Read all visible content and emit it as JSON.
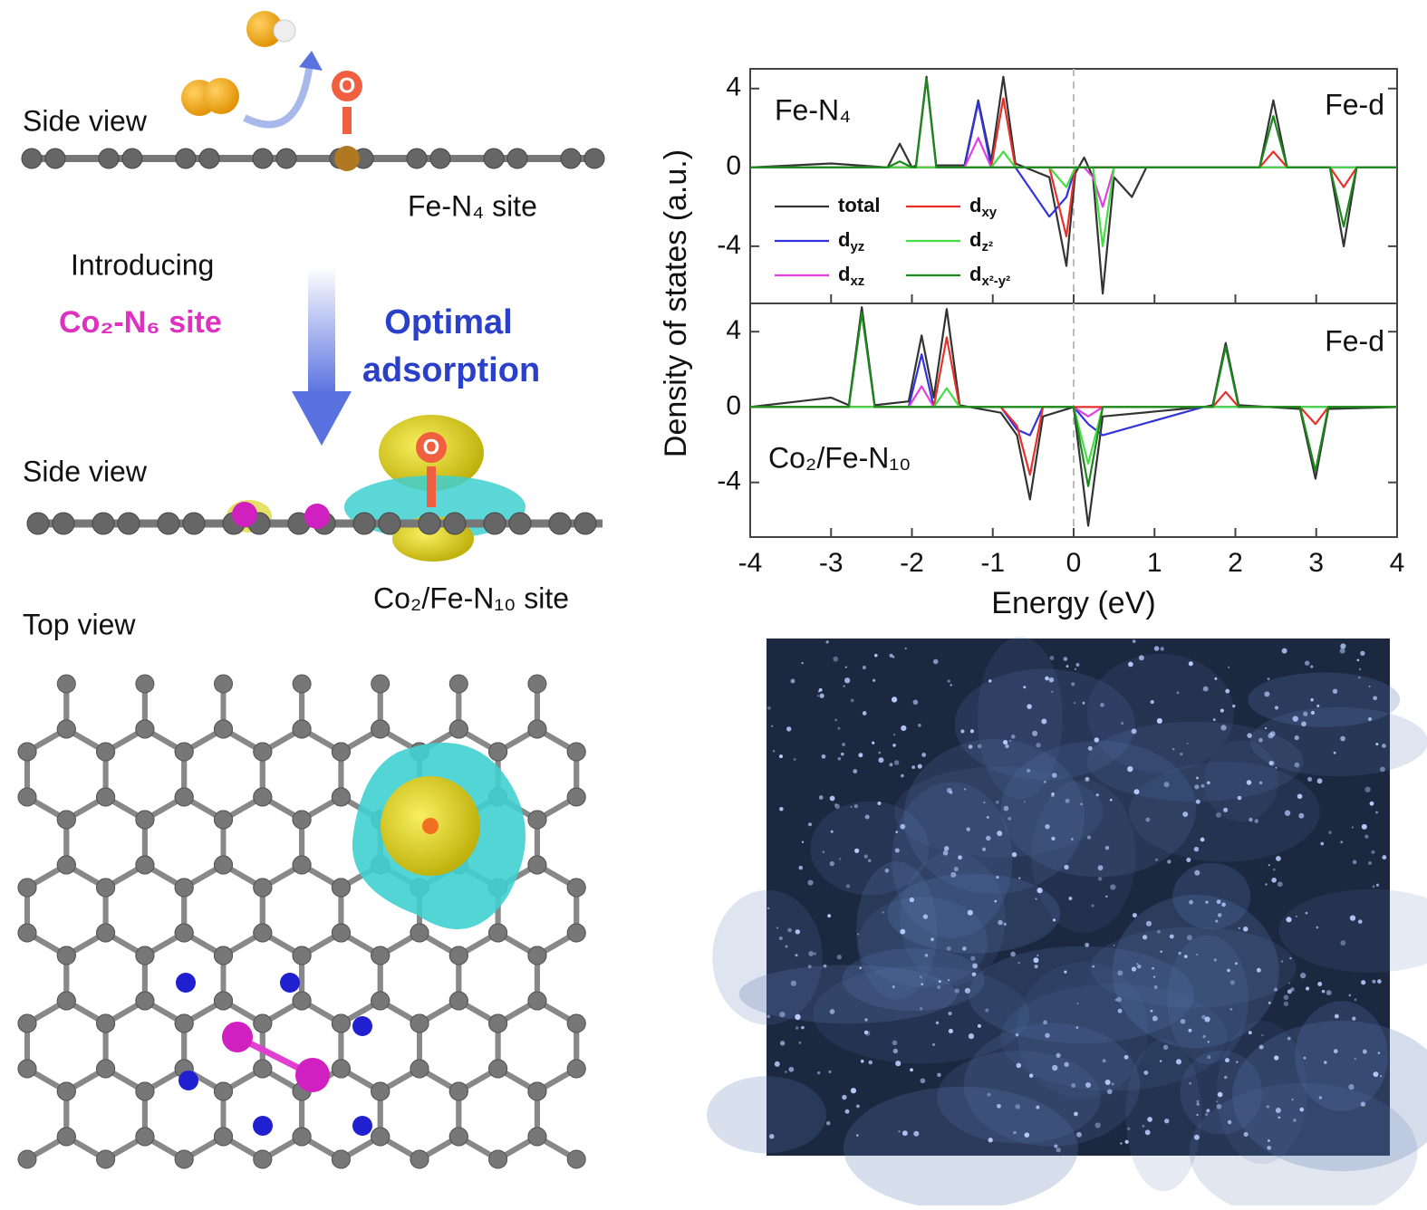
{
  "figure": {
    "side_view_top": "Side view",
    "fe_site": "Fe-N₄ site",
    "introducing": "Introducing",
    "co_site": "Co₂-N₆ site",
    "optimal_1": "Optimal",
    "optimal_2": "adsorption",
    "side_view_bottom": "Side view",
    "co_fe_site": "Co₂/Fe-N₁₀ site",
    "top_view": "Top view",
    "oxygen_top": "O",
    "oxygen_bottom": "O"
  },
  "chart_data": [
    {
      "type": "line",
      "ylabel": "Density of states (a.u.)",
      "annotations": [
        "Fe-N₄",
        "Fe-d"
      ],
      "xlim": [
        -4,
        4
      ],
      "xticks": [
        -4,
        -3,
        -2,
        -1,
        0,
        1,
        2,
        3,
        4
      ],
      "ylim": [
        -6.9,
        5.0
      ],
      "yticks": [
        -4,
        0,
        4
      ],
      "x": [
        -4,
        -3.0,
        -2.3,
        -2.15,
        -2.0,
        -1.95,
        -1.82,
        -1.7,
        -1.35,
        -1.18,
        -1.02,
        -0.87,
        -0.72,
        -0.3,
        -0.09,
        0.02,
        0.13,
        0.24,
        0.36,
        0.5,
        0.72,
        0.9,
        2.3,
        2.47,
        2.64,
        3.17,
        3.34,
        3.5,
        4
      ],
      "series": [
        {
          "name": "total",
          "color": "#333333",
          "values": [
            0,
            0.2,
            0,
            1.2,
            0,
            0.1,
            4.6,
            0.1,
            0.1,
            3.4,
            0.3,
            4.6,
            0.2,
            -0.5,
            -5.0,
            -0.3,
            0.5,
            -0.5,
            -6.4,
            -0.5,
            -1.5,
            0,
            0,
            3.4,
            0,
            0,
            -4.0,
            0,
            0
          ]
        },
        {
          "name": "dyz",
          "color": "#3333dd",
          "values": [
            0,
            0,
            0,
            0,
            0,
            0,
            0,
            0,
            0,
            3.3,
            0,
            0,
            0,
            -2.5,
            -1.5,
            0,
            0,
            0,
            0,
            0,
            0,
            0,
            0,
            0,
            0,
            0,
            0,
            0,
            0
          ]
        },
        {
          "name": "dxz",
          "color": "#e23ee2",
          "values": [
            0,
            0,
            0,
            0,
            0,
            0,
            0,
            0,
            0,
            1.5,
            0,
            0,
            0,
            0,
            0,
            0,
            0,
            -0.5,
            -2.0,
            0,
            0,
            0,
            0,
            0,
            0,
            0,
            0,
            0,
            0
          ]
        },
        {
          "name": "dxy",
          "color": "#e8302a",
          "values": [
            0,
            0,
            0,
            0,
            0,
            0,
            0,
            0,
            0,
            0,
            0,
            3.5,
            0,
            0,
            -3.5,
            0,
            0,
            0,
            0,
            0,
            0,
            0,
            0,
            0.8,
            0,
            0,
            -1.0,
            0,
            0
          ]
        },
        {
          "name": "dz²",
          "color": "#44dd44",
          "values": [
            0,
            0,
            0,
            0,
            0,
            0,
            0,
            0,
            0,
            0,
            0,
            0.8,
            0,
            0,
            -1.0,
            0,
            0,
            0,
            -4.0,
            0,
            0,
            0,
            0,
            0,
            0,
            0,
            0,
            0,
            0
          ]
        },
        {
          "name": "dx²-y²",
          "color": "#1a8a1a",
          "values": [
            0,
            0,
            0,
            0.3,
            0,
            0,
            4.5,
            0,
            0,
            0,
            0,
            0,
            0,
            0,
            0,
            0,
            0,
            0,
            0,
            0,
            0,
            0,
            0,
            2.6,
            0,
            0,
            -3.0,
            0,
            0
          ]
        }
      ]
    },
    {
      "type": "line",
      "xlabel": "Energy (eV)",
      "annotations": [
        "Co₂/Fe-N₁₀",
        "Fe-d"
      ],
      "xlim": [
        -4,
        4
      ],
      "xticks": [
        -4,
        -3,
        -2,
        -1,
        0,
        1,
        2,
        3,
        4
      ],
      "ylim": [
        -6.9,
        5.5
      ],
      "yticks": [
        -4,
        0,
        4
      ],
      "x": [
        -4,
        -3,
        -2.78,
        -2.62,
        -2.46,
        -2.04,
        -1.88,
        -1.73,
        -1.57,
        -1.41,
        -0.9,
        -0.7,
        -0.54,
        -0.38,
        0.0,
        0.18,
        0.36,
        1.6,
        1.72,
        1.88,
        2.04,
        2.8,
        2.99,
        3.15,
        4
      ],
      "series": [
        {
          "color": "#333333",
          "values": [
            0,
            0.5,
            0.1,
            5.3,
            0.1,
            0.3,
            3.8,
            0.5,
            5.2,
            0.1,
            -0.3,
            -1.5,
            -4.9,
            -0.5,
            0,
            -6.3,
            -0.5,
            0,
            0.1,
            3.4,
            0.1,
            -0.1,
            -3.8,
            -0.1,
            0
          ]
        },
        {
          "color": "#3333dd",
          "values": [
            0,
            0,
            0,
            0,
            0,
            0,
            2.8,
            0,
            0,
            0,
            0,
            -1.2,
            -1.5,
            0,
            0,
            -0.9,
            -1.5,
            0,
            0,
            0,
            0,
            0,
            0,
            0,
            0
          ]
        },
        {
          "color": "#e23ee2",
          "values": [
            0,
            0,
            0,
            0,
            0,
            0,
            1.1,
            0,
            0,
            0,
            0,
            0,
            0,
            0,
            0,
            -0.5,
            0,
            0,
            0,
            0,
            0,
            0,
            0,
            0,
            0
          ]
        },
        {
          "color": "#e8302a",
          "values": [
            0,
            0,
            0,
            0,
            0,
            0,
            0,
            0,
            3.7,
            0,
            0,
            -1.0,
            -3.6,
            0,
            0,
            0,
            0,
            0,
            0,
            0.8,
            0,
            0,
            -0.9,
            0,
            0
          ]
        },
        {
          "color": "#44dd44",
          "values": [
            0,
            0,
            0,
            0,
            0,
            0,
            0,
            0,
            1.0,
            0,
            0,
            0,
            0,
            0,
            0,
            -3.0,
            0,
            0,
            0,
            0,
            0,
            0,
            0,
            0,
            0
          ]
        },
        {
          "color": "#1a8a1a",
          "values": [
            0,
            0,
            0,
            5.0,
            0,
            0,
            0,
            0,
            0,
            0,
            0,
            0,
            0,
            0,
            0,
            -4.2,
            0,
            0,
            0,
            3.2,
            0,
            0,
            -3.4,
            0,
            0
          ]
        }
      ]
    }
  ]
}
